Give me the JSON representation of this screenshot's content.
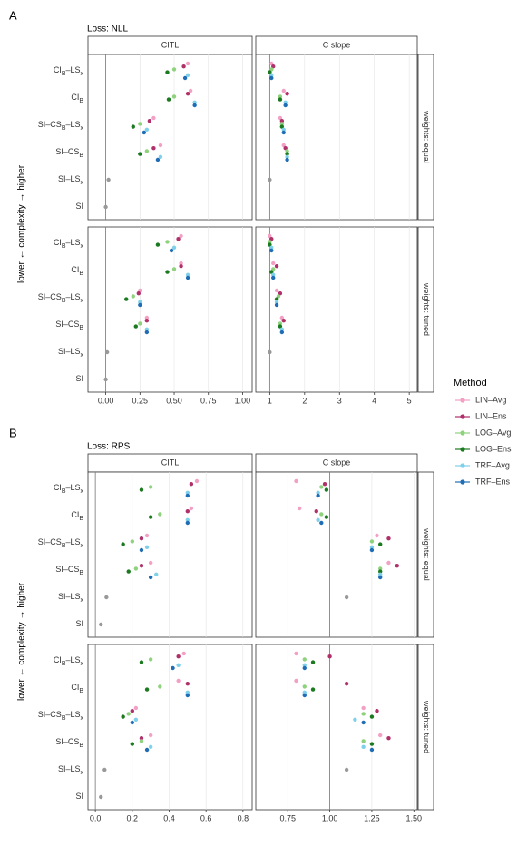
{
  "chart_data": [
    {
      "type": "dot",
      "panel_label": "A",
      "subtitle": "Loss: NLL",
      "ylabel": "lower ← complexity → higher",
      "categories": [
        [
          {
            "t": "CI"
          },
          {
            "t": "B",
            "sub": true
          },
          {
            "t": "–LS"
          },
          {
            "t": "x",
            "sub": true
          }
        ],
        [
          {
            "t": "CI"
          },
          {
            "t": "B",
            "sub": true
          }
        ],
        [
          {
            "t": "SI–CS"
          },
          {
            "t": "B",
            "sub": true
          },
          {
            "t": "–LS"
          },
          {
            "t": "x",
            "sub": true
          }
        ],
        [
          {
            "t": "SI–CS"
          },
          {
            "t": "B",
            "sub": true
          }
        ],
        [
          {
            "t": "SI–LS"
          },
          {
            "t": "x",
            "sub": true
          }
        ],
        [
          {
            "t": "SI"
          }
        ]
      ],
      "rows": [
        "weights: equal",
        "weights: tuned"
      ],
      "columns": [
        {
          "title": "CITL",
          "xlim": [
            -0.13,
            1.07
          ],
          "refline": 0,
          "xticks": [
            {
              "value": 0,
              "label": "0.00"
            },
            0.25,
            {
              "value": 0.5,
              "label": "0.50"
            },
            0.75,
            {
              "value": 1,
              "label": "1.00"
            }
          ]
        },
        {
          "title": "C slope",
          "xlim": [
            0.6,
            5.23
          ],
          "refline": 1,
          "xticks": [
            1,
            2,
            3,
            4,
            5
          ]
        }
      ],
      "panels": [
        [
          {
            "values": [
              [
                0.6,
                0.62,
                0.35,
                0.4,
                null,
                null
              ],
              [
                0.57,
                0.6,
                0.32,
                0.35,
                null,
                null
              ],
              [
                0.5,
                0.5,
                0.25,
                0.3,
                null,
                null
              ],
              [
                0.45,
                0.46,
                0.2,
                0.25,
                null,
                null
              ],
              [
                0.6,
                0.65,
                0.3,
                0.4,
                null,
                null
              ],
              [
                0.58,
                0.65,
                0.28,
                0.38,
                null,
                null
              ]
            ],
            "other_values": [
              null,
              null,
              null,
              null,
              0.02,
              0.0
            ]
          },
          {
            "values": [
              [
                1.05,
                1.4,
                1.3,
                1.4,
                null,
                null
              ],
              [
                1.1,
                1.5,
                1.35,
                1.45,
                null,
                null
              ],
              [
                1.05,
                1.3,
                1.35,
                1.5,
                null,
                null
              ],
              [
                1.0,
                1.3,
                1.35,
                1.5,
                null,
                null
              ],
              [
                1.05,
                1.45,
                1.4,
                1.5,
                null,
                null
              ],
              [
                1.05,
                1.45,
                1.4,
                1.5,
                null,
                null
              ]
            ],
            "other_values": [
              null,
              null,
              null,
              null,
              1.0,
              null
            ]
          }
        ],
        [
          {
            "values": [
              [
                0.55,
                0.55,
                0.25,
                0.3,
                null,
                null
              ],
              [
                0.53,
                0.55,
                0.24,
                0.3,
                null,
                null
              ],
              [
                0.45,
                0.5,
                0.2,
                0.25,
                null,
                null
              ],
              [
                0.38,
                0.45,
                0.15,
                0.22,
                null,
                null
              ],
              [
                0.5,
                0.6,
                0.25,
                0.3,
                null,
                null
              ],
              [
                0.48,
                0.6,
                0.25,
                0.3,
                null,
                null
              ]
            ],
            "other_values": [
              null,
              null,
              null,
              null,
              0.01,
              0.0
            ]
          },
          {
            "values": [
              [
                1.0,
                1.1,
                1.2,
                1.35,
                null,
                null
              ],
              [
                1.05,
                1.2,
                1.3,
                1.4,
                null,
                null
              ],
              [
                1.0,
                1.1,
                1.25,
                1.3,
                null,
                null
              ],
              [
                1.0,
                1.05,
                1.2,
                1.3,
                null,
                null
              ],
              [
                1.05,
                1.1,
                1.2,
                1.35,
                null,
                null
              ],
              [
                1.05,
                1.1,
                1.2,
                1.35,
                null,
                null
              ]
            ],
            "other_values": [
              null,
              null,
              null,
              null,
              1.0,
              null
            ]
          }
        ]
      ]
    },
    {
      "type": "dot",
      "panel_label": "B",
      "subtitle": "Loss: RPS",
      "ylabel": "lower ← complexity → higher",
      "categories": [
        [
          {
            "t": "CI"
          },
          {
            "t": "B",
            "sub": true
          },
          {
            "t": "–LS"
          },
          {
            "t": "x",
            "sub": true
          }
        ],
        [
          {
            "t": "CI"
          },
          {
            "t": "B",
            "sub": true
          }
        ],
        [
          {
            "t": "SI–CS"
          },
          {
            "t": "B",
            "sub": true
          },
          {
            "t": "–LS"
          },
          {
            "t": "x",
            "sub": true
          }
        ],
        [
          {
            "t": "SI–CS"
          },
          {
            "t": "B",
            "sub": true
          }
        ],
        [
          {
            "t": "SI–LS"
          },
          {
            "t": "x",
            "sub": true
          }
        ],
        [
          {
            "t": "SI"
          }
        ]
      ],
      "rows": [
        "weights: equal",
        "weights: tuned"
      ],
      "columns": [
        {
          "title": "CITL",
          "xlim": [
            -0.04,
            0.85
          ],
          "refline": 0,
          "xticks": [
            {
              "value": 0,
              "label": "0.0"
            },
            0.2,
            0.4,
            0.6,
            0.8
          ]
        },
        {
          "title": "C slope",
          "xlim": [
            0.56,
            1.52
          ],
          "refline": 1,
          "xticks": [
            0.75,
            {
              "value": 1,
              "label": "1.00"
            },
            1.25,
            {
              "value": 1.5,
              "label": "1.50"
            }
          ]
        }
      ],
      "panels": [
        [
          {
            "values": [
              [
                0.55,
                0.52,
                0.28,
                0.3,
                null,
                null
              ],
              [
                0.52,
                0.5,
                0.25,
                0.25,
                null,
                null
              ],
              [
                0.3,
                0.35,
                0.2,
                0.22,
                null,
                null
              ],
              [
                0.25,
                0.3,
                0.15,
                0.18,
                null,
                null
              ],
              [
                0.5,
                0.5,
                0.28,
                0.33,
                null,
                null
              ],
              [
                0.5,
                0.5,
                0.25,
                0.3,
                null,
                null
              ]
            ],
            "other_values": [
              null,
              null,
              null,
              null,
              0.06,
              0.03
            ]
          },
          {
            "values": [
              [
                0.8,
                0.82,
                1.28,
                1.35,
                null,
                null
              ],
              [
                0.97,
                0.92,
                1.35,
                1.4,
                null,
                null
              ],
              [
                0.95,
                0.95,
                1.25,
                1.3,
                null,
                null
              ],
              [
                0.98,
                0.98,
                1.3,
                1.3,
                null,
                null
              ],
              [
                0.93,
                0.93,
                1.25,
                1.3,
                null,
                null
              ],
              [
                0.93,
                0.95,
                1.25,
                1.3,
                null,
                null
              ]
            ],
            "other_values": [
              null,
              null,
              null,
              null,
              1.1,
              null
            ]
          }
        ],
        [
          {
            "values": [
              [
                0.48,
                0.45,
                0.22,
                0.3,
                null,
                null
              ],
              [
                0.45,
                0.5,
                0.2,
                0.25,
                null,
                null
              ],
              [
                0.3,
                0.35,
                0.18,
                0.25,
                null,
                null
              ],
              [
                0.25,
                0.28,
                0.15,
                0.2,
                null,
                null
              ],
              [
                0.45,
                0.5,
                0.22,
                0.3,
                null,
                null
              ],
              [
                0.42,
                0.5,
                0.2,
                0.28,
                null,
                null
              ]
            ],
            "other_values": [
              null,
              null,
              null,
              null,
              0.05,
              0.03
            ]
          },
          {
            "values": [
              [
                0.8,
                0.8,
                1.2,
                1.3,
                null,
                null
              ],
              [
                1.0,
                1.1,
                1.28,
                1.35,
                null,
                null
              ],
              [
                0.85,
                0.85,
                1.2,
                1.2,
                null,
                null
              ],
              [
                0.9,
                0.9,
                1.25,
                1.25,
                null,
                null
              ],
              [
                0.85,
                0.85,
                1.15,
                1.2,
                null,
                null
              ],
              [
                0.85,
                0.85,
                1.2,
                1.25,
                null,
                null
              ]
            ],
            "other_values": [
              null,
              null,
              null,
              null,
              1.1,
              null
            ]
          }
        ]
      ]
    }
  ],
  "legend": {
    "title": "Method",
    "series": [
      {
        "name": "LIN–Avg",
        "color": "#f2a0c4"
      },
      {
        "name": "LIN–Ens",
        "color": "#b0306a"
      },
      {
        "name": "LOG–Avg",
        "color": "#8fd27e"
      },
      {
        "name": "LOG–Ens",
        "color": "#1b7a1f"
      },
      {
        "name": "TRF–Avg",
        "color": "#7fd0ea"
      },
      {
        "name": "TRF–Ens",
        "color": "#1f6db5"
      }
    ]
  }
}
